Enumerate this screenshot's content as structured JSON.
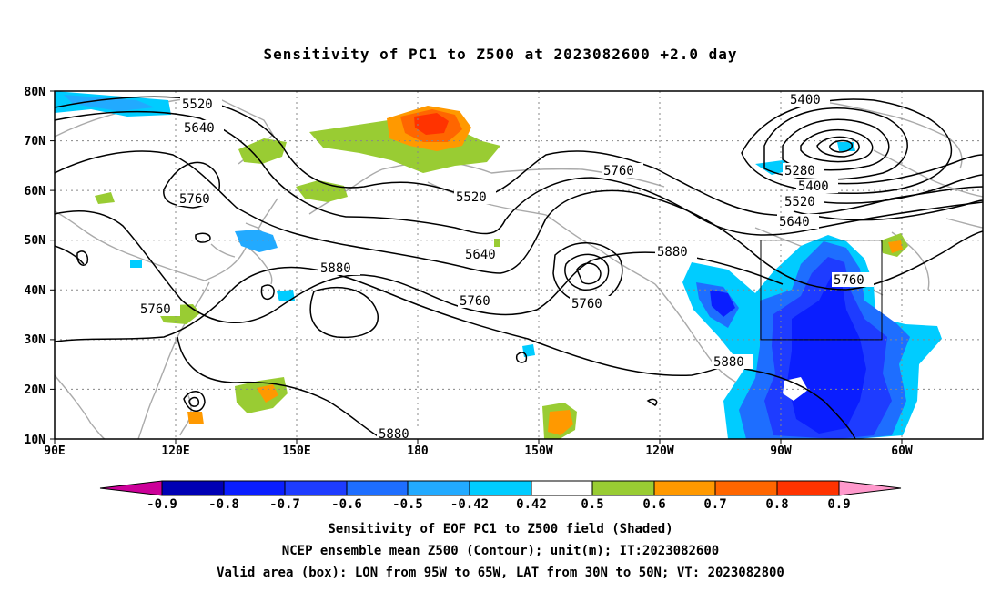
{
  "title": "Sensitivity of PC1 to Z500 at 2023082600 +2.0 day",
  "axes": {
    "lat_labels": [
      "80N",
      "70N",
      "60N",
      "50N",
      "40N",
      "30N",
      "20N",
      "10N"
    ],
    "lon_labels": [
      "90E",
      "120E",
      "150E",
      "180",
      "150W",
      "120W",
      "90W",
      "60W"
    ]
  },
  "contour_labels": [
    "5520",
    "5640",
    "5760",
    "5520",
    "5640",
    "5760",
    "5760",
    "5880",
    "5760",
    "5880",
    "5880",
    "5880",
    "5760",
    "5400",
    "5280",
    "5400",
    "5520",
    "5640",
    "5760"
  ],
  "colorbar": {
    "labels": [
      "-0.9",
      "-0.8",
      "-0.7",
      "-0.6",
      "-0.5",
      "-0.42",
      "0.42",
      "0.5",
      "0.6",
      "0.7",
      "0.8",
      "0.9"
    ],
    "colors": [
      "#cc0099",
      "#0000b4",
      "#0a1eff",
      "#1e3cff",
      "#1e6eff",
      "#22aaff",
      "#00ccff",
      "#ffffff",
      "#99cc33",
      "#ff9900",
      "#ff6600",
      "#ff3300",
      "#ff0000",
      "#ff99cc"
    ]
  },
  "valid_box": {
    "lon": [
      "95W",
      "65W"
    ],
    "lat": [
      "30N",
      "50N"
    ]
  },
  "captions": [
    "Sensitivity of EOF PC1 to Z500 field (Shaded)",
    "NCEP ensemble mean Z500 (Contour); unit(m); IT:2023082600",
    "Valid area (box): LON from 95W to 65W, LAT from 30N to 50N; VT: 2023082800"
  ]
}
